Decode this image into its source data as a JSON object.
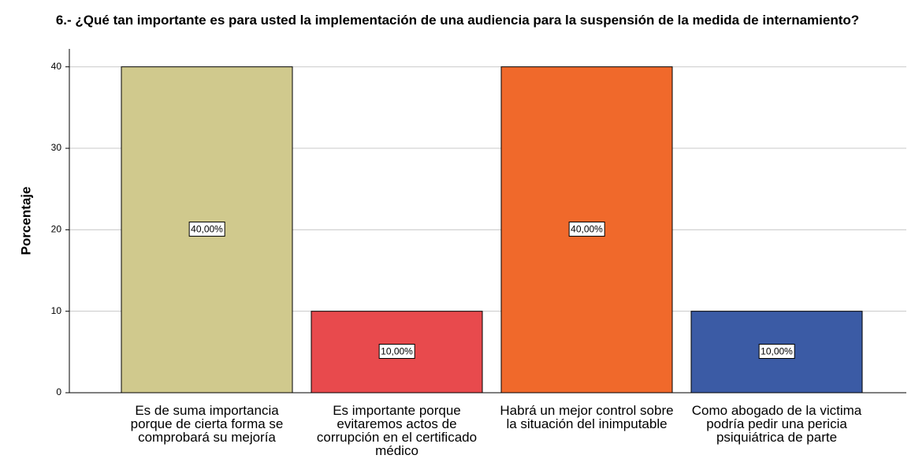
{
  "chart_data": {
    "type": "bar",
    "title": "6.- ¿Qué tan importante es para usted la implementación de una audiencia para la suspensión de la medida de internamiento?",
    "y_label": "Porcentaje",
    "categories": [
      "Es de suma importancia porque de cierta forma se comprobará su mejoría",
      "Es importante porque evitaremos actos de corrupción en el certificado médico",
      "Habrá un mejor control sobre la situación del inimputable",
      "Como abogado de la victima podría pedir una pericia psiquiátrica de parte"
    ],
    "values": [
      40,
      10,
      40,
      10
    ],
    "value_labels": [
      "40,00%",
      "10,00%",
      "40,00%",
      "10,00%"
    ],
    "colors": [
      "#d0c98d",
      "#e84a4d",
      "#f0692b",
      "#3b5ba5"
    ],
    "ylim": [
      0,
      42.2
    ],
    "yticks": [
      0,
      10,
      20,
      30,
      40
    ],
    "grid": true
  }
}
